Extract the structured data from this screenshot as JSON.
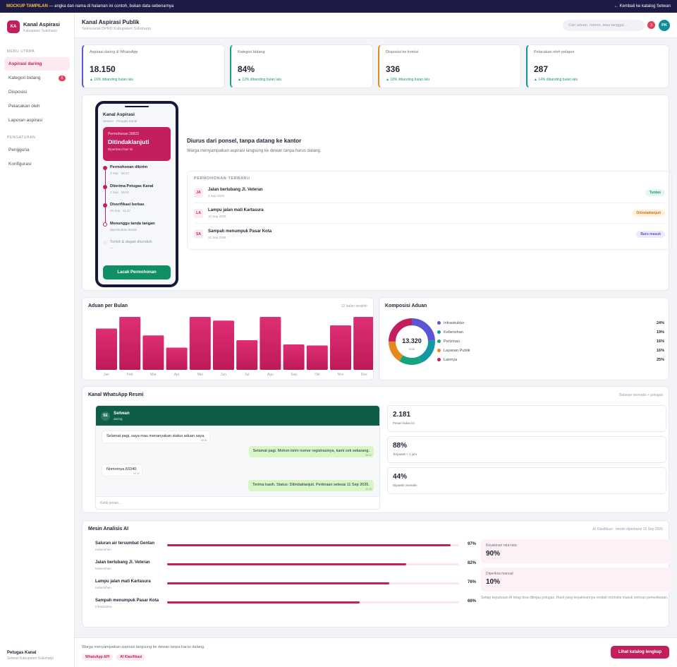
{
  "topbar": {
    "tag": "MOCKUP TAMPILAN",
    "note": "— angka dan nama di halaman ini contoh, bukan data sebenarnya",
    "back": "← Kembali ke katalog Setwan"
  },
  "sidebar": {
    "logo": "KA",
    "name": "Kanal Aspirasi",
    "sub": "Kabupaten Sukoharjo",
    "section1": "MENU UTAMA",
    "items": [
      {
        "label": "Aspirasi daring",
        "active": true
      },
      {
        "label": "Kategori bidang",
        "badge": "6"
      },
      {
        "label": "Disposisi"
      },
      {
        "label": "Pelacakan oleh"
      },
      {
        "label": "Laporan aspirasi"
      }
    ],
    "section2": "PENGATURAN",
    "items2": [
      {
        "label": "Pengguna"
      },
      {
        "label": "Konfigurasi"
      }
    ],
    "user": {
      "name": "Petugas Kanal",
      "org": "Setwan Kabupaten Sukoharjo"
    }
  },
  "header": {
    "title": "Kanal Aspirasi Publik",
    "sub": "Sekretariat DPRD Kabupaten Sukoharjo",
    "search_placeholder": "Cari aduan, nomor, atau tanggal...",
    "notif": "3",
    "avatar": "PK"
  },
  "stats": [
    {
      "label": "Aspirasi daring & WhatsApp",
      "value": "18.150",
      "change": "▲ 16% dibanding bulan lalu",
      "color": "#5b55d6"
    },
    {
      "label": "Kategori bidang",
      "value": "84%",
      "change": "▲ 12% dibanding bulan lalu",
      "color": "#16a37f"
    },
    {
      "label": "Disposisi ke komisi",
      "value": "336",
      "change": "▲ 18% dibanding bulan lalu",
      "color": "#e58a1f"
    },
    {
      "label": "Pelacakan oleh pelapor",
      "value": "287",
      "change": "▲ 14% dibanding bulan lalu",
      "color": "#0f9aa3"
    }
  ],
  "phone": {
    "title": "Kanal Aspirasi",
    "sub": "Setwan · Petugas Kanal",
    "card_label": "Permohonan 39823",
    "card_status": "Ditindaklanjuti",
    "card_note": "Diperbarui hari ini",
    "steps": [
      {
        "title": "Permohonan dikirim",
        "date": "3 Sep · 08.27",
        "state": "done"
      },
      {
        "title": "Diterima Petugas Kanal",
        "date": "1 Sep · 09.51",
        "state": "done"
      },
      {
        "title": "Diverifikasi berkas",
        "date": "25 Sep · 11.47",
        "state": "done"
      },
      {
        "title": "Menunggu tanda tangan",
        "date": "diperkirakan besok",
        "state": "current"
      },
      {
        "title": "Terbit & dapat diunduh",
        "date": "—",
        "state": "todo"
      }
    ],
    "button": "Lacak Permohonan"
  },
  "hero": {
    "title": "Diurus dari ponsel, tanpa datang ke kantor",
    "text": "Warga menyampaikan aspirasi langsung ke dewan tanpa harus datang."
  },
  "recent": {
    "heading": "PERMOHONAN TERBARU",
    "items": [
      {
        "initials": "JA",
        "title": "Jalan berlubang Jl. Veteran",
        "date": "4 Sep 2026",
        "status": "Tuntas",
        "bg": "#e3f7ee",
        "fg": "#1a9a6c"
      },
      {
        "initials": "LA",
        "title": "Lampu jalan mati Kartasura",
        "date": "10 Sep 2026",
        "status": "Ditindaklanjuti",
        "bg": "#fdf1dc",
        "fg": "#c37a12"
      },
      {
        "initials": "SA",
        "title": "Sampah menumpuk Pasar Kota",
        "date": "21 Sep 2026",
        "status": "Baru masuk",
        "bg": "#ecebfb",
        "fg": "#5b55d6"
      }
    ]
  },
  "monthly": {
    "title": "Aduan per Bulan",
    "range": "12 bulan terakhir"
  },
  "composition": {
    "title": "Komposisi Aduan",
    "total": "13.320",
    "total_label": "total"
  },
  "chart_data": [
    {
      "type": "bar",
      "title": "Aduan per Bulan",
      "categories": [
        "Jan",
        "Feb",
        "Mar",
        "Apr",
        "Mei",
        "Jun",
        "Jul",
        "Agu",
        "Sep",
        "Okt",
        "Nov",
        "Des"
      ],
      "values": [
        78,
        100,
        65,
        42,
        100,
        93,
        56,
        100,
        48,
        46,
        84,
        100
      ],
      "ylim": [
        0,
        100
      ]
    },
    {
      "type": "pie",
      "title": "Komposisi Aduan",
      "labels": [
        "Infrastruktur",
        "Kebersihan",
        "Perizinan",
        "Layanan Publik",
        "Lainnya"
      ],
      "values": [
        24,
        19,
        16,
        16,
        25
      ],
      "display": [
        "24%",
        "19%",
        "16%",
        "16%",
        "25%"
      ],
      "colors": [
        "#5b55d6",
        "#0f9aa3",
        "#16a37f",
        "#e58a1f",
        "#c31f5e"
      ],
      "donut_order": [
        0,
        1,
        2,
        3,
        4
      ]
    }
  ],
  "whatsapp": {
    "title": "Kanal WhatsApp Resmi",
    "right": "Balasan otomatis + petugas",
    "contact": {
      "avatar": "SE",
      "name": "Setwan",
      "status": "daring"
    },
    "messages": [
      {
        "dir": "in",
        "text": "Selamat pagi, saya mau menanyakan status aduan saya.",
        "time": "08.01"
      },
      {
        "dir": "out",
        "text": "Selamat pagi. Mohon kirim nomor registrasinya, kami cek sekarang.",
        "time": "08.02"
      },
      {
        "dir": "in",
        "text": "Nomornya 83340.",
        "time": "10.12"
      },
      {
        "dir": "out",
        "text": "Terima kasih. Status: Ditindaklanjuti. Perkiraan selesai 11 Sep 2026.",
        "time": "10.13"
      }
    ],
    "input_placeholder": "Ketik pesan...",
    "stats": [
      {
        "value": "2.181",
        "label": "Pesan bulan ini"
      },
      {
        "value": "88%",
        "label": "Terjawab < 1 jam"
      },
      {
        "value": "44%",
        "label": "Dijawab otomatis"
      }
    ]
  },
  "ai": {
    "title": "Mesin Analisis AI",
    "right": "AI Klasifikasi · model diperbarui 15 Sep 2026",
    "rows": [
      {
        "name": "Saluran air tersumbat Gentan",
        "cat": "Kebersihan",
        "value": 97,
        "pct": "97%"
      },
      {
        "name": "Jalan berlubang Jl. Veteran",
        "cat": "Kebersihan",
        "value": 82,
        "pct": "82%"
      },
      {
        "name": "Lampu jalan mati Kartasura",
        "cat": "Kebersihan",
        "value": 76,
        "pct": "76%"
      },
      {
        "name": "Sampah menumpuk Pasar Kota",
        "cat": "Infrastruktur",
        "value": 66,
        "pct": "66%"
      }
    ],
    "boxes": [
      {
        "label": "Keyakinan rata-rata",
        "value": "90%"
      },
      {
        "label": "Diperiksa manual",
        "value": "10%"
      }
    ],
    "note": "Setiap keputusan AI tetap bisa ditinjau petugas. Hasil yang keyakinannya rendah otomatis masuk antrean pemeriksaan."
  },
  "footer": {
    "text": "Warga menyampaikan aspirasi langsung ke dewan tanpa harus datang.",
    "chips": [
      "WhatsApp API",
      "AI Klasifikasi"
    ],
    "cta": "Lihat katalog lengkap"
  }
}
